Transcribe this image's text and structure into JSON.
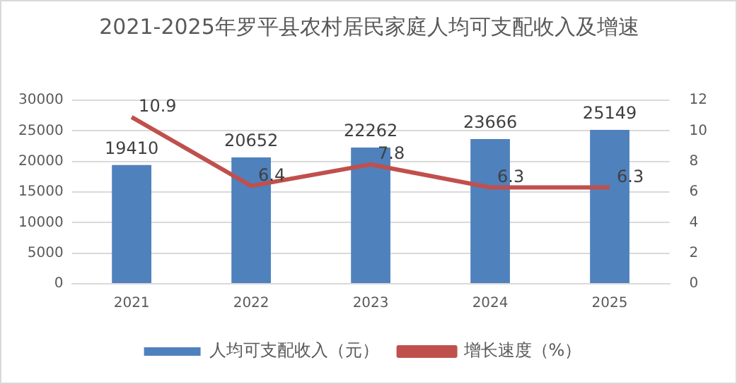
{
  "chart_data": {
    "type": "bar",
    "title": "2021-2025年罗平县农村居民家庭人均可支配收入及增速",
    "categories": [
      "2021",
      "2022",
      "2023",
      "2024",
      "2025"
    ],
    "series": [
      {
        "name": "人均可支配收入（元）",
        "color": "#4f81bd",
        "values": [
          19410,
          20652,
          22262,
          23666,
          25149
        ]
      },
      {
        "name": "增长速度（%）",
        "type": "line",
        "axis": "y2",
        "color": "#c0504d",
        "values": [
          10.9,
          6.4,
          7.8,
          6.3,
          6.3
        ]
      }
    ],
    "ylim": [
      0,
      30000
    ],
    "yticks": [
      0,
      5000,
      10000,
      15000,
      20000,
      25000,
      30000
    ],
    "y2lim": [
      0,
      12
    ],
    "y2ticks": [
      0,
      2,
      4,
      6,
      8,
      10,
      12
    ],
    "grid": "y",
    "legend": "bottom",
    "marker": "none",
    "line_style": "solid",
    "data_labels": true
  }
}
